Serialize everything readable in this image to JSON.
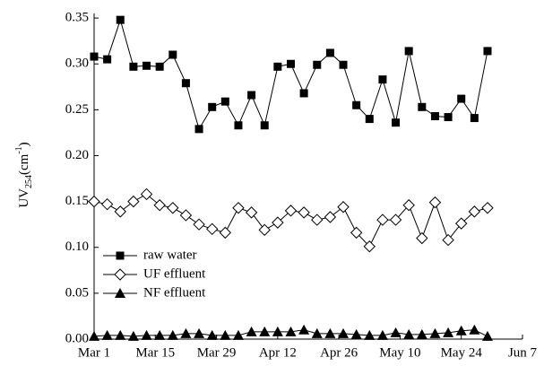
{
  "chart_data": {
    "type": "line",
    "y_label_parts": [
      "UV",
      "254",
      "(cm",
      "-1",
      ")"
    ],
    "x": [
      0,
      3,
      6,
      9,
      12,
      15,
      18,
      21,
      24,
      27,
      30,
      33,
      36,
      39,
      42,
      45,
      48,
      51,
      54,
      57,
      60,
      63,
      66,
      69,
      72,
      75,
      78,
      81,
      84,
      87,
      90
    ],
    "xlim": [
      0,
      98
    ],
    "xticks": [
      {
        "value": 0,
        "label": "Mar 1"
      },
      {
        "value": 14,
        "label": "Mar 15"
      },
      {
        "value": 28,
        "label": "Mar 29"
      },
      {
        "value": 42,
        "label": "Apr 12"
      },
      {
        "value": 56,
        "label": "Apr 26"
      },
      {
        "value": 70,
        "label": "May 10"
      },
      {
        "value": 84,
        "label": "May 24"
      },
      {
        "value": 98,
        "label": "Jun 7"
      }
    ],
    "ylim": [
      0,
      0.355
    ],
    "yticks": [
      {
        "value": 0,
        "label": "0.00"
      },
      {
        "value": 0.05,
        "label": "0.05"
      },
      {
        "value": 0.1,
        "label": "0.10"
      },
      {
        "value": 0.15,
        "label": "0.15"
      },
      {
        "value": 0.2,
        "label": "0.20"
      },
      {
        "value": 0.25,
        "label": "0.25"
      },
      {
        "value": 0.3,
        "label": "0.30"
      },
      {
        "value": 0.35,
        "label": "0.35"
      }
    ],
    "legend": "lower left",
    "series": [
      {
        "name": "raw water",
        "color": "#000000",
        "marker": "square",
        "values": [
          0.308,
          0.305,
          0.348,
          0.297,
          0.298,
          0.297,
          0.31,
          0.279,
          0.229,
          0.253,
          0.259,
          0.233,
          0.266,
          0.233,
          0.297,
          0.3,
          0.268,
          0.299,
          0.312,
          0.299,
          0.255,
          0.24,
          0.283,
          0.236,
          0.314,
          0.253,
          0.243,
          0.242,
          0.262,
          0.241,
          0.314
        ]
      },
      {
        "name": "UF effluent",
        "color": "#000000",
        "marker": "diamond-open",
        "values": [
          0.15,
          0.147,
          0.139,
          0.15,
          0.158,
          0.146,
          0.143,
          0.135,
          0.125,
          0.12,
          0.116,
          0.143,
          0.138,
          0.119,
          0.127,
          0.14,
          0.138,
          0.13,
          0.133,
          0.144,
          0.116,
          0.101,
          0.13,
          0.13,
          0.146,
          0.11,
          0.149,
          0.108,
          0.126,
          0.139,
          0.143
        ]
      },
      {
        "name": "NF effluent",
        "color": "#000000",
        "marker": "triangle",
        "values": [
          0.003,
          0.004,
          0.004,
          0.003,
          0.004,
          0.004,
          0.004,
          0.006,
          0.006,
          0.004,
          0.004,
          0.004,
          0.008,
          0.008,
          0.008,
          0.008,
          0.01,
          0.006,
          0.006,
          0.006,
          0.005,
          0.004,
          0.004,
          0.007,
          0.005,
          0.005,
          0.006,
          0.007,
          0.009,
          0.01,
          0.003
        ]
      }
    ]
  }
}
